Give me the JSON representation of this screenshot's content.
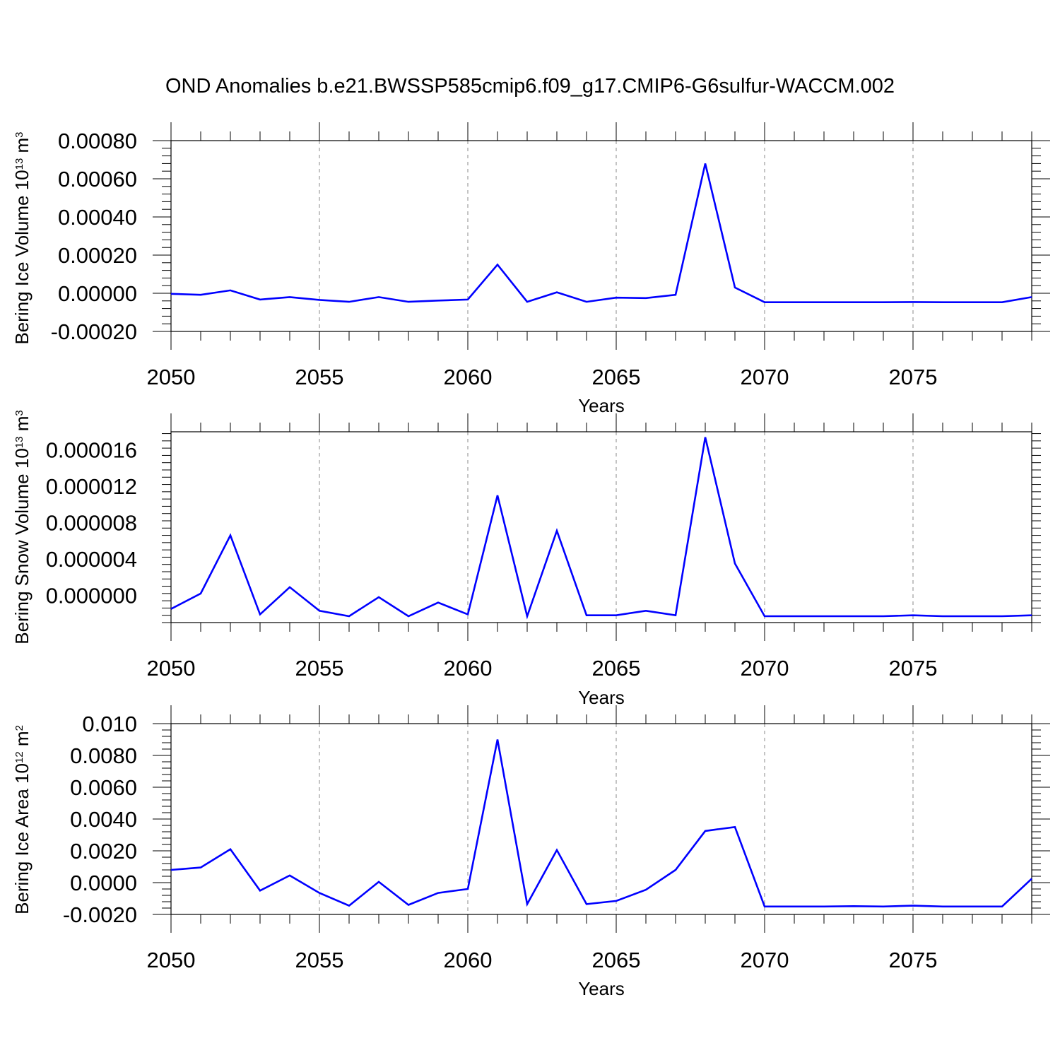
{
  "title": "OND Anomalies b.e21.BWSSP585cmip6.f09_g17.CMIP6-G6sulfur-WACCM.002",
  "colors": {
    "series": "#0000ff",
    "axis": "#000000",
    "grid": "#888888"
  },
  "chart_data": [
    {
      "type": "line",
      "xlabel": "Years",
      "ylabel": {
        "text": "Bering Ice Volume 10",
        "exp": "13",
        "unit": " m",
        "unit_exp": "3"
      },
      "xlim": [
        2050,
        2079
      ],
      "ylim": [
        -0.0002,
        0.0008
      ],
      "xticks": [
        2050,
        2055,
        2060,
        2065,
        2070,
        2075
      ],
      "yticks": [
        "-0.00020",
        "0.00000",
        "0.00020",
        "0.00040",
        "0.00060",
        "0.00080"
      ],
      "grid": "vertical dashed at major x ticks",
      "x": [
        2050,
        2051,
        2052,
        2053,
        2054,
        2055,
        2056,
        2057,
        2058,
        2059,
        2060,
        2061,
        2062,
        2063,
        2064,
        2065,
        2066,
        2067,
        2068,
        2069,
        2070,
        2071,
        2072,
        2073,
        2074,
        2075,
        2076,
        2077,
        2078,
        2079
      ],
      "values": [
        -3e-06,
        -8e-06,
        1.5e-05,
        -3.3e-05,
        -2e-05,
        -3.5e-05,
        -4.5e-05,
        -2e-05,
        -4.5e-05,
        -3.8e-05,
        -3.3e-05,
        0.00015,
        -4.5e-05,
        5e-06,
        -4.5e-05,
        -2.3e-05,
        -2.5e-05,
        -8e-06,
        0.00068,
        3e-05,
        -4.7e-05,
        -4.7e-05,
        -4.7e-05,
        -4.7e-05,
        -4.7e-05,
        -4.6e-05,
        -4.7e-05,
        -4.7e-05,
        -4.7e-05,
        -2e-05
      ]
    },
    {
      "type": "line",
      "xlabel": "Years",
      "ylabel": {
        "text": "Bering Snow Volume 10",
        "exp": "13",
        "unit": " m",
        "unit_exp": "3"
      },
      "xlim": [
        2050,
        2079
      ],
      "ylim": [
        -3e-06,
        1.8e-05
      ],
      "xticks": [
        2050,
        2055,
        2060,
        2065,
        2070,
        2075
      ],
      "yticks": [
        "0.000000",
        "0.000004",
        "0.000008",
        "0.000012",
        "0.000016"
      ],
      "grid": "vertical dashed at major x ticks",
      "x": [
        2050,
        2051,
        2052,
        2053,
        2054,
        2055,
        2056,
        2057,
        2058,
        2059,
        2060,
        2061,
        2062,
        2063,
        2064,
        2065,
        2066,
        2067,
        2068,
        2069,
        2070,
        2071,
        2072,
        2073,
        2074,
        2075,
        2076,
        2077,
        2078,
        2079
      ],
      "values": [
        -1.5e-06,
        2e-07,
        6.6e-06,
        -2.1e-06,
        9e-07,
        -1.7e-06,
        -2.3e-06,
        -2e-07,
        -2.3e-06,
        -8e-07,
        -2.1e-06,
        1.1e-05,
        -2.3e-06,
        7.1e-06,
        -2.2e-06,
        -2.2e-06,
        -1.7e-06,
        -2.2e-06,
        1.74e-05,
        3.5e-06,
        -2.3e-06,
        -2.3e-06,
        -2.3e-06,
        -2.3e-06,
        -2.3e-06,
        -2.2e-06,
        -2.3e-06,
        -2.3e-06,
        -2.3e-06,
        -2.2e-06
      ]
    },
    {
      "type": "line",
      "xlabel": "Years",
      "ylabel": {
        "text": "Bering Ice Area 10",
        "exp": "12",
        "unit": " m",
        "unit_exp": "2"
      },
      "xlim": [
        2050,
        2079
      ],
      "ylim": [
        -0.002,
        0.01
      ],
      "xticks": [
        2050,
        2055,
        2060,
        2065,
        2070,
        2075
      ],
      "yticks": [
        "-0.0020",
        "0.0000",
        "0.0020",
        "0.0040",
        "0.0060",
        "0.0080",
        "0.010"
      ],
      "grid": "vertical dashed at major x ticks",
      "x": [
        2050,
        2051,
        2052,
        2053,
        2054,
        2055,
        2056,
        2057,
        2058,
        2059,
        2060,
        2061,
        2062,
        2063,
        2064,
        2065,
        2066,
        2067,
        2068,
        2069,
        2070,
        2071,
        2072,
        2073,
        2074,
        2075,
        2076,
        2077,
        2078,
        2079
      ],
      "values": [
        0.0008,
        0.00095,
        0.0021,
        -0.0005,
        0.00045,
        -0.00065,
        -0.00145,
        5e-05,
        -0.0014,
        -0.00065,
        -0.0004,
        0.009,
        -0.00135,
        0.00205,
        -0.00135,
        -0.00115,
        -0.00045,
        0.0008,
        0.00325,
        0.0035,
        -0.0015,
        -0.0015,
        -0.0015,
        -0.00148,
        -0.0015,
        -0.00145,
        -0.0015,
        -0.0015,
        -0.0015,
        0.00025
      ]
    }
  ]
}
